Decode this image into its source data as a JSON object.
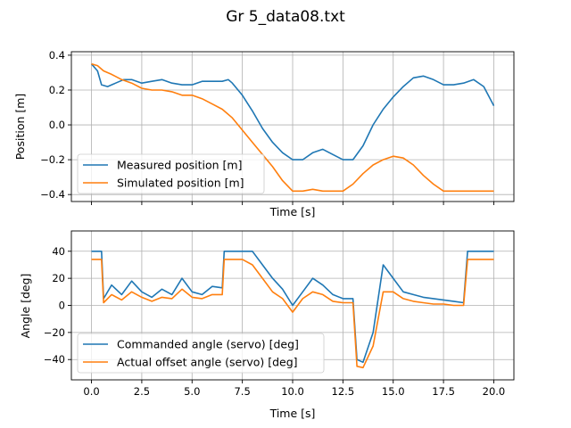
{
  "chart_data": [
    {
      "type": "line",
      "figure_title": "Gr 5_data08.txt",
      "title": "",
      "xlabel": "Time [s]",
      "ylabel": "Position [m]",
      "xlim": [
        -1.0,
        21.0
      ],
      "ylim": [
        -0.44,
        0.42
      ],
      "xticks": [
        0.0,
        2.5,
        5.0,
        7.5,
        10.0,
        12.5,
        15.0,
        17.5,
        20.0
      ],
      "xtick_labels_shown": false,
      "yticks": [
        -0.4,
        -0.2,
        0.0,
        0.2,
        0.4
      ],
      "ytick_labels": [
        "−0.4",
        "−0.2",
        "0.0",
        "0.2",
        "0.4"
      ],
      "grid": true,
      "legend": "lower-left",
      "series": [
        {
          "name": "Measured position [m]",
          "color": "#1f77b4",
          "x": [
            0.0,
            0.3,
            0.5,
            0.8,
            1.2,
            1.6,
            2.0,
            2.5,
            3.0,
            3.5,
            4.0,
            4.5,
            5.0,
            5.5,
            6.0,
            6.5,
            6.8,
            7.0,
            7.5,
            8.0,
            8.5,
            9.0,
            9.5,
            10.0,
            10.5,
            11.0,
            11.5,
            12.0,
            12.5,
            13.0,
            13.5,
            14.0,
            14.5,
            15.0,
            15.5,
            16.0,
            16.5,
            17.0,
            17.5,
            18.0,
            18.5,
            19.0,
            19.5,
            20.0
          ],
          "y": [
            0.35,
            0.31,
            0.23,
            0.22,
            0.24,
            0.26,
            0.26,
            0.24,
            0.25,
            0.26,
            0.24,
            0.23,
            0.23,
            0.25,
            0.25,
            0.25,
            0.26,
            0.24,
            0.17,
            0.08,
            -0.02,
            -0.1,
            -0.16,
            -0.2,
            -0.2,
            -0.16,
            -0.14,
            -0.17,
            -0.2,
            -0.2,
            -0.12,
            0.0,
            0.09,
            0.16,
            0.22,
            0.27,
            0.28,
            0.26,
            0.23,
            0.23,
            0.24,
            0.26,
            0.22,
            0.11
          ]
        },
        {
          "name": "Simulated position [m]",
          "color": "#ff7f0e",
          "x": [
            0.0,
            0.3,
            0.6,
            1.0,
            1.5,
            2.0,
            2.5,
            3.0,
            3.5,
            4.0,
            4.5,
            5.0,
            5.5,
            6.0,
            6.5,
            7.0,
            7.5,
            8.0,
            8.5,
            9.0,
            9.5,
            10.0,
            10.5,
            11.0,
            11.5,
            12.0,
            12.5,
            13.0,
            13.5,
            14.0,
            14.5,
            15.0,
            15.5,
            16.0,
            16.5,
            17.0,
            17.5,
            18.0,
            18.5,
            19.0,
            19.5,
            20.0
          ],
          "y": [
            0.35,
            0.34,
            0.31,
            0.29,
            0.26,
            0.24,
            0.21,
            0.2,
            0.2,
            0.19,
            0.17,
            0.17,
            0.15,
            0.12,
            0.09,
            0.04,
            -0.03,
            -0.1,
            -0.17,
            -0.24,
            -0.32,
            -0.38,
            -0.38,
            -0.37,
            -0.38,
            -0.38,
            -0.38,
            -0.34,
            -0.28,
            -0.23,
            -0.2,
            -0.18,
            -0.19,
            -0.23,
            -0.29,
            -0.34,
            -0.38,
            -0.38,
            -0.38,
            -0.38,
            -0.38,
            -0.38
          ]
        }
      ]
    },
    {
      "type": "line",
      "title": "",
      "xlabel": "Time [s]",
      "ylabel": "Angle [deg]",
      "xlim": [
        -1.0,
        21.0
      ],
      "ylim": [
        -55,
        55
      ],
      "xticks": [
        0.0,
        2.5,
        5.0,
        7.5,
        10.0,
        12.5,
        15.0,
        17.5,
        20.0
      ],
      "xtick_labels": [
        "0.0",
        "2.5",
        "5.0",
        "7.5",
        "10.0",
        "12.5",
        "15.0",
        "17.5",
        "20.0"
      ],
      "yticks": [
        -40,
        -20,
        0,
        20,
        40
      ],
      "ytick_labels": [
        "−40",
        "−20",
        "0",
        "20",
        "40"
      ],
      "grid": true,
      "legend": "lower-left",
      "series": [
        {
          "name": "Commanded angle (servo) [deg]",
          "color": "#1f77b4",
          "x": [
            0.0,
            0.5,
            0.6,
            1.0,
            1.5,
            2.0,
            2.5,
            3.0,
            3.5,
            4.0,
            4.5,
            5.0,
            5.5,
            6.0,
            6.5,
            6.6,
            7.0,
            7.5,
            8.0,
            8.5,
            9.0,
            9.5,
            10.0,
            10.5,
            11.0,
            11.5,
            12.0,
            12.5,
            13.0,
            13.2,
            13.5,
            14.0,
            14.5,
            15.0,
            15.5,
            16.0,
            16.5,
            17.0,
            17.5,
            18.0,
            18.5,
            18.7,
            19.0,
            19.5,
            20.0
          ],
          "y": [
            40,
            40,
            5,
            15,
            8,
            18,
            10,
            6,
            12,
            8,
            20,
            10,
            8,
            14,
            13,
            40,
            40,
            40,
            40,
            30,
            20,
            12,
            0,
            10,
            20,
            15,
            8,
            5,
            5,
            -40,
            -42,
            -20,
            30,
            20,
            10,
            8,
            6,
            5,
            4,
            3,
            2,
            40,
            40,
            40,
            40
          ]
        },
        {
          "name": "Actual offset angle (servo) [deg]",
          "color": "#ff7f0e",
          "x": [
            0.0,
            0.5,
            0.6,
            1.0,
            1.5,
            2.0,
            2.5,
            3.0,
            3.5,
            4.0,
            4.5,
            5.0,
            5.5,
            6.0,
            6.5,
            6.6,
            7.0,
            7.5,
            8.0,
            8.5,
            9.0,
            9.5,
            10.0,
            10.5,
            11.0,
            11.5,
            12.0,
            12.5,
            13.0,
            13.2,
            13.5,
            14.0,
            14.5,
            15.0,
            15.5,
            16.0,
            16.5,
            17.0,
            17.5,
            18.0,
            18.5,
            18.7,
            19.0,
            19.5,
            20.0
          ],
          "y": [
            34,
            34,
            2,
            8,
            4,
            10,
            6,
            3,
            6,
            5,
            12,
            6,
            5,
            8,
            8,
            34,
            34,
            34,
            30,
            20,
            10,
            5,
            -5,
            5,
            10,
            8,
            3,
            2,
            2,
            -45,
            -46,
            -30,
            10,
            10,
            5,
            3,
            2,
            1,
            1,
            0,
            0,
            34,
            34,
            34,
            34
          ]
        }
      ]
    }
  ]
}
